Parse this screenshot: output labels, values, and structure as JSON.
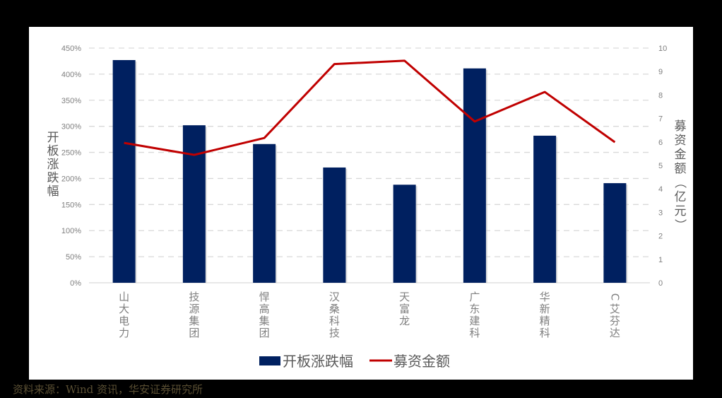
{
  "chart_data": {
    "type": "bar",
    "title": "",
    "categories": [
      "山大电力",
      "技源集团",
      "悍高集团",
      "汉桑科技",
      "天富龙",
      "广东建科",
      "华新精科",
      "C艾芬达"
    ],
    "series": [
      {
        "name": "开板涨跌幅",
        "type": "bar",
        "axis": "left",
        "color": "#002060",
        "values": [
          427,
          302,
          266,
          221,
          188,
          411,
          282,
          191
        ]
      },
      {
        "name": "募资金额",
        "type": "line",
        "axis": "right",
        "color": "#c00000",
        "values": [
          5.96,
          5.45,
          6.17,
          9.32,
          9.46,
          6.87,
          8.13,
          5.99
        ]
      }
    ],
    "xlabel": "",
    "ylabel": "开板涨跌幅",
    "y2label": "募资金额（亿元）",
    "ylim": [
      0,
      450
    ],
    "y2lim": [
      0,
      10
    ],
    "yticks": [
      "0%",
      "50%",
      "100%",
      "150%",
      "200%",
      "250%",
      "300%",
      "350%",
      "400%",
      "450%"
    ],
    "y2ticks": [
      "0",
      "1",
      "2",
      "3",
      "4",
      "5",
      "6",
      "7",
      "8",
      "9",
      "10"
    ],
    "grid": true,
    "legend_position": "bottom"
  },
  "legend": {
    "bar_label": "开板涨跌幅",
    "line_label": "募资金额"
  },
  "axis": {
    "left_title": "开板涨跌幅",
    "right_title": "募资金额（亿元）"
  },
  "source": "资料来源：Wind 资讯，华安证券研究所"
}
